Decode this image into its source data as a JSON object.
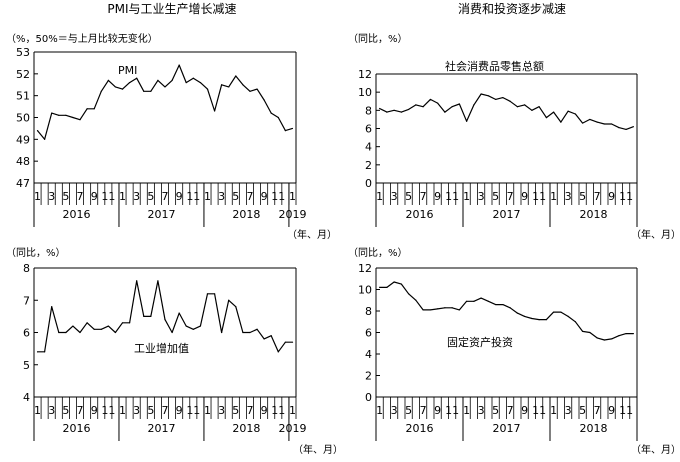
{
  "section_titles": {
    "left": "PMI与工业生产增长减速",
    "right": "消费和投资逐步减速"
  },
  "chart_data": [
    {
      "type": "line",
      "title": "PMI",
      "ylabel": "（%，50%＝与上月比较无变化）",
      "xlabel": "（年、月）",
      "series_label": "PMI",
      "ylim": [
        47,
        53
      ],
      "yticks": [
        "47",
        "48",
        "49",
        "50",
        "51",
        "52",
        "53"
      ],
      "x_month_labels": [
        "1",
        "3",
        "5",
        "7",
        "9",
        "11",
        "1",
        "3",
        "5",
        "7",
        "9",
        "11",
        "1",
        "3",
        "5",
        "7",
        "9",
        "11",
        "1"
      ],
      "x_year_labels": [
        "2016",
        "2017",
        "2018",
        "2019"
      ],
      "n_months": 37,
      "values": [
        49.4,
        49.0,
        50.2,
        50.1,
        50.1,
        50.0,
        49.9,
        50.4,
        50.4,
        51.2,
        51.7,
        51.4,
        51.3,
        51.6,
        51.8,
        51.2,
        51.2,
        51.7,
        51.4,
        51.7,
        52.4,
        51.6,
        51.8,
        51.6,
        51.3,
        50.3,
        51.5,
        51.4,
        51.9,
        51.5,
        51.2,
        51.3,
        50.8,
        50.2,
        50.0,
        49.4,
        49.5
      ]
    },
    {
      "type": "line",
      "title": "社会消费品零售总额",
      "ylabel": "（同比，%）",
      "xlabel": "（年、月）",
      "series_label": "社会消费品零售总额",
      "ylim": [
        0,
        12
      ],
      "yticks": [
        "0",
        "2",
        "4",
        "6",
        "8",
        "10",
        "12"
      ],
      "x_month_labels": [
        "1",
        "3",
        "5",
        "7",
        "9",
        "11",
        "1",
        "3",
        "5",
        "7",
        "9",
        "11",
        "1",
        "3",
        "5",
        "7",
        "9",
        "11"
      ],
      "x_year_labels": [
        "2016",
        "2017",
        "2018"
      ],
      "n_months": 36,
      "values": [
        8.2,
        7.8,
        8.0,
        7.8,
        8.1,
        8.6,
        8.4,
        9.2,
        8.8,
        7.8,
        8.4,
        8.7,
        6.8,
        8.6,
        9.8,
        9.6,
        9.2,
        9.4,
        9.0,
        8.4,
        8.6,
        8.0,
        8.4,
        7.2,
        7.8,
        6.7,
        7.9,
        7.6,
        6.6,
        7.0,
        6.7,
        6.5,
        6.5,
        6.1,
        5.9,
        6.2
      ]
    },
    {
      "type": "line",
      "title": "工业增加值",
      "ylabel": "（同比，%）",
      "xlabel": "（年、月）",
      "series_label": "工业增加值",
      "ylim": [
        4,
        8
      ],
      "yticks": [
        "4",
        "5",
        "6",
        "7",
        "8"
      ],
      "x_month_labels": [
        "1",
        "3",
        "5",
        "7",
        "9",
        "11",
        "1",
        "3",
        "5",
        "7",
        "9",
        "11",
        "1",
        "3",
        "5",
        "7",
        "9",
        "11",
        "1"
      ],
      "x_year_labels": [
        "2016",
        "2017",
        "2018",
        "2019"
      ],
      "n_months": 37,
      "values": [
        5.4,
        5.4,
        6.8,
        6.0,
        6.0,
        6.2,
        6.0,
        6.3,
        6.1,
        6.1,
        6.2,
        6.0,
        6.3,
        6.3,
        7.6,
        6.5,
        6.5,
        7.6,
        6.4,
        6.0,
        6.6,
        6.2,
        6.1,
        6.2,
        7.2,
        7.2,
        6.0,
        7.0,
        6.8,
        6.0,
        6.0,
        6.1,
        5.8,
        5.9,
        5.4,
        5.7,
        5.7
      ]
    },
    {
      "type": "line",
      "title": "固定资产投资",
      "ylabel": "（同比，%）",
      "xlabel": "（年、月）",
      "series_label": "固定资产投资",
      "ylim": [
        0,
        12
      ],
      "yticks": [
        "0",
        "2",
        "4",
        "6",
        "8",
        "10",
        "12"
      ],
      "x_month_labels": [
        "1",
        "3",
        "5",
        "7",
        "9",
        "11",
        "1",
        "3",
        "5",
        "7",
        "9",
        "11",
        "1",
        "3",
        "5",
        "7",
        "9",
        "11"
      ],
      "x_year_labels": [
        "2016",
        "2017",
        "2018"
      ],
      "n_months": 36,
      "values": [
        10.2,
        10.2,
        10.7,
        10.5,
        9.6,
        9.0,
        8.1,
        8.1,
        8.2,
        8.3,
        8.3,
        8.1,
        8.9,
        8.9,
        9.2,
        8.9,
        8.6,
        8.6,
        8.3,
        7.8,
        7.5,
        7.3,
        7.2,
        7.2,
        7.9,
        7.9,
        7.5,
        7.0,
        6.1,
        6.0,
        5.5,
        5.3,
        5.4,
        5.7,
        5.9,
        5.9
      ]
    }
  ]
}
